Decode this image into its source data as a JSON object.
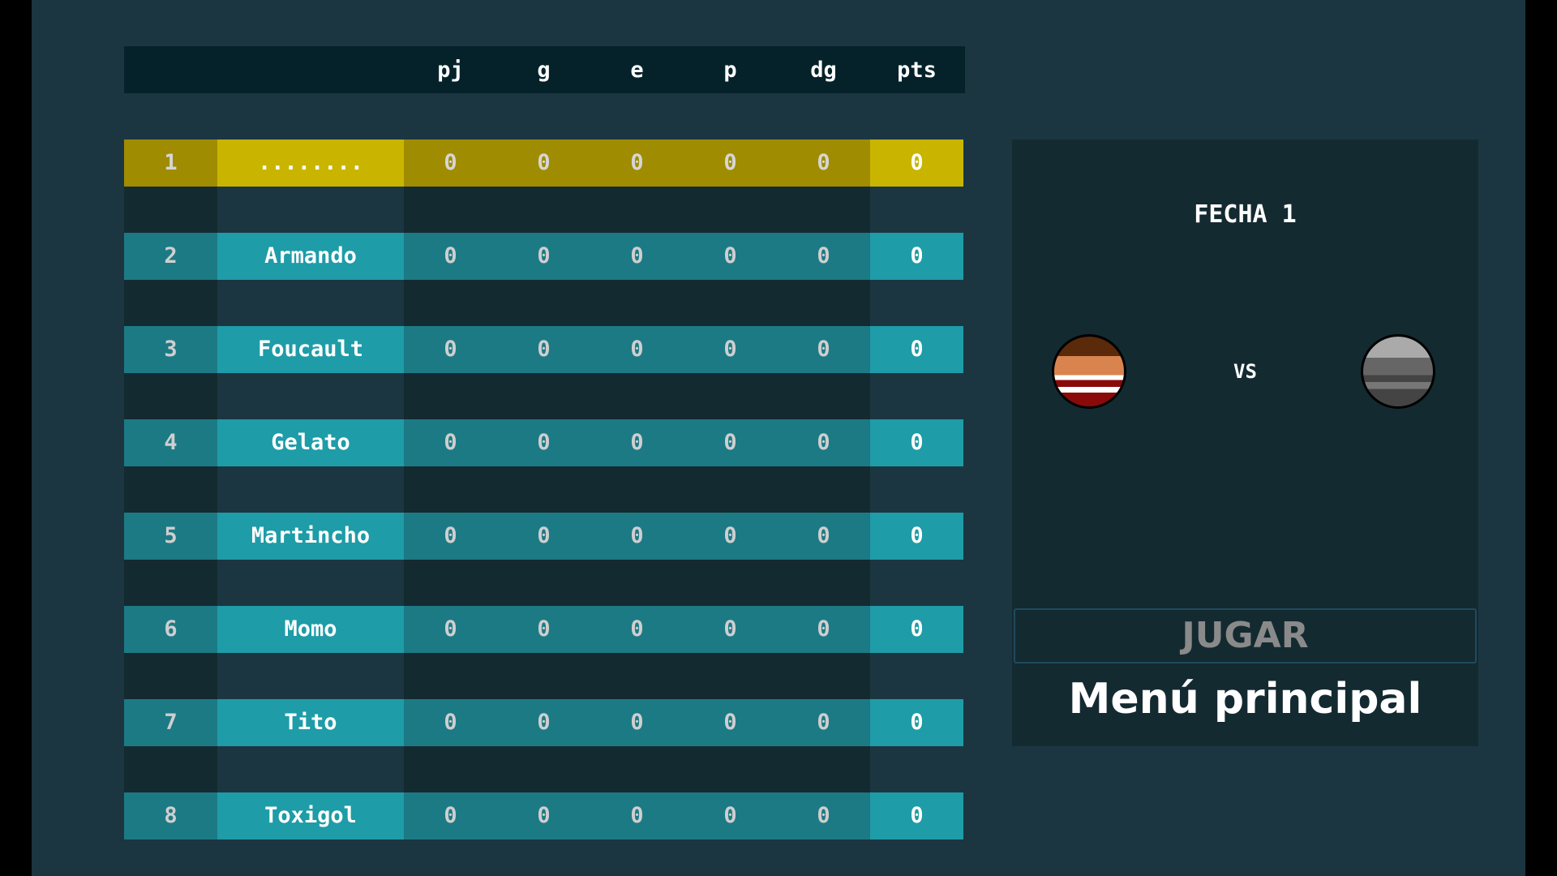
{
  "table": {
    "headers": [
      "pj",
      "g",
      "e",
      "p",
      "dg",
      "pts"
    ],
    "rows": [
      {
        "pos": "1",
        "name": "........",
        "pj": "0",
        "g": "0",
        "e": "0",
        "p": "0",
        "dg": "0",
        "pts": "0",
        "highlight": true
      },
      {
        "pos": "2",
        "name": "Armando",
        "pj": "0",
        "g": "0",
        "e": "0",
        "p": "0",
        "dg": "0",
        "pts": "0"
      },
      {
        "pos": "3",
        "name": "Foucault",
        "pj": "0",
        "g": "0",
        "e": "0",
        "p": "0",
        "dg": "0",
        "pts": "0"
      },
      {
        "pos": "4",
        "name": "Gelato",
        "pj": "0",
        "g": "0",
        "e": "0",
        "p": "0",
        "dg": "0",
        "pts": "0"
      },
      {
        "pos": "5",
        "name": "Martincho",
        "pj": "0",
        "g": "0",
        "e": "0",
        "p": "0",
        "dg": "0",
        "pts": "0"
      },
      {
        "pos": "6",
        "name": "Momo",
        "pj": "0",
        "g": "0",
        "e": "0",
        "p": "0",
        "dg": "0",
        "pts": "0"
      },
      {
        "pos": "7",
        "name": "Tito",
        "pj": "0",
        "g": "0",
        "e": "0",
        "p": "0",
        "dg": "0",
        "pts": "0"
      },
      {
        "pos": "8",
        "name": "Toxigol",
        "pj": "0",
        "g": "0",
        "e": "0",
        "p": "0",
        "dg": "0",
        "pts": "0"
      }
    ]
  },
  "match": {
    "title": "FECHA 1",
    "vs": "VS",
    "play_label": "JUGAR",
    "menu_label": "Menú principal"
  },
  "colors": {
    "highlight": "#c9b500",
    "teal": "#1e9ca8",
    "background": "#1b3640"
  }
}
